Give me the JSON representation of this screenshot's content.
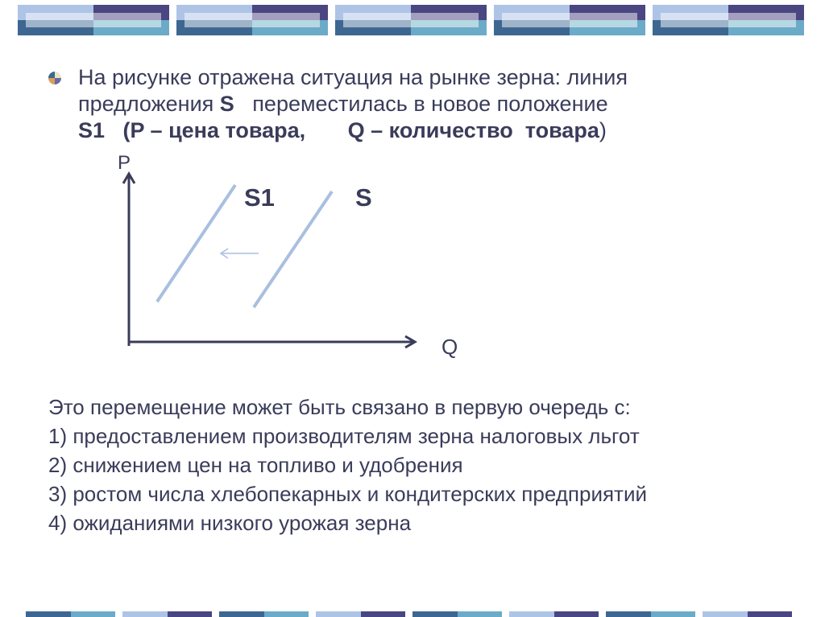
{
  "colors": {
    "text": "#3a3c5a",
    "curve": "#a9bfdf",
    "axis": "#3a3c5a"
  },
  "title": {
    "line1": "На рисунке отражена ситуация на рынке зерна: линия",
    "line2_pre": "предложения ",
    "line2_s": "S",
    "line2_post": "   переместилась в новое положение",
    "line3_s1": "S1",
    "line3_rest": "   (P – цена товара,       Q – количество  товара",
    "line3_close": ")"
  },
  "diagram": {
    "y_axis_label": "P",
    "x_axis_label": "Q",
    "curve_new_label": "S1",
    "curve_old_label": "S",
    "shift_direction": "left"
  },
  "question": {
    "intro": "Это перемещение может быть связано в первую очередь с:",
    "options": [
      "1) предоставлением производителям зерна налоговых льгот",
      "2) снижением цен на топливо и удобрения",
      "3) ростом числа хлебопекарных и кондитерских предприятий",
      "4) ожиданиями низкого урожая зерна"
    ]
  }
}
